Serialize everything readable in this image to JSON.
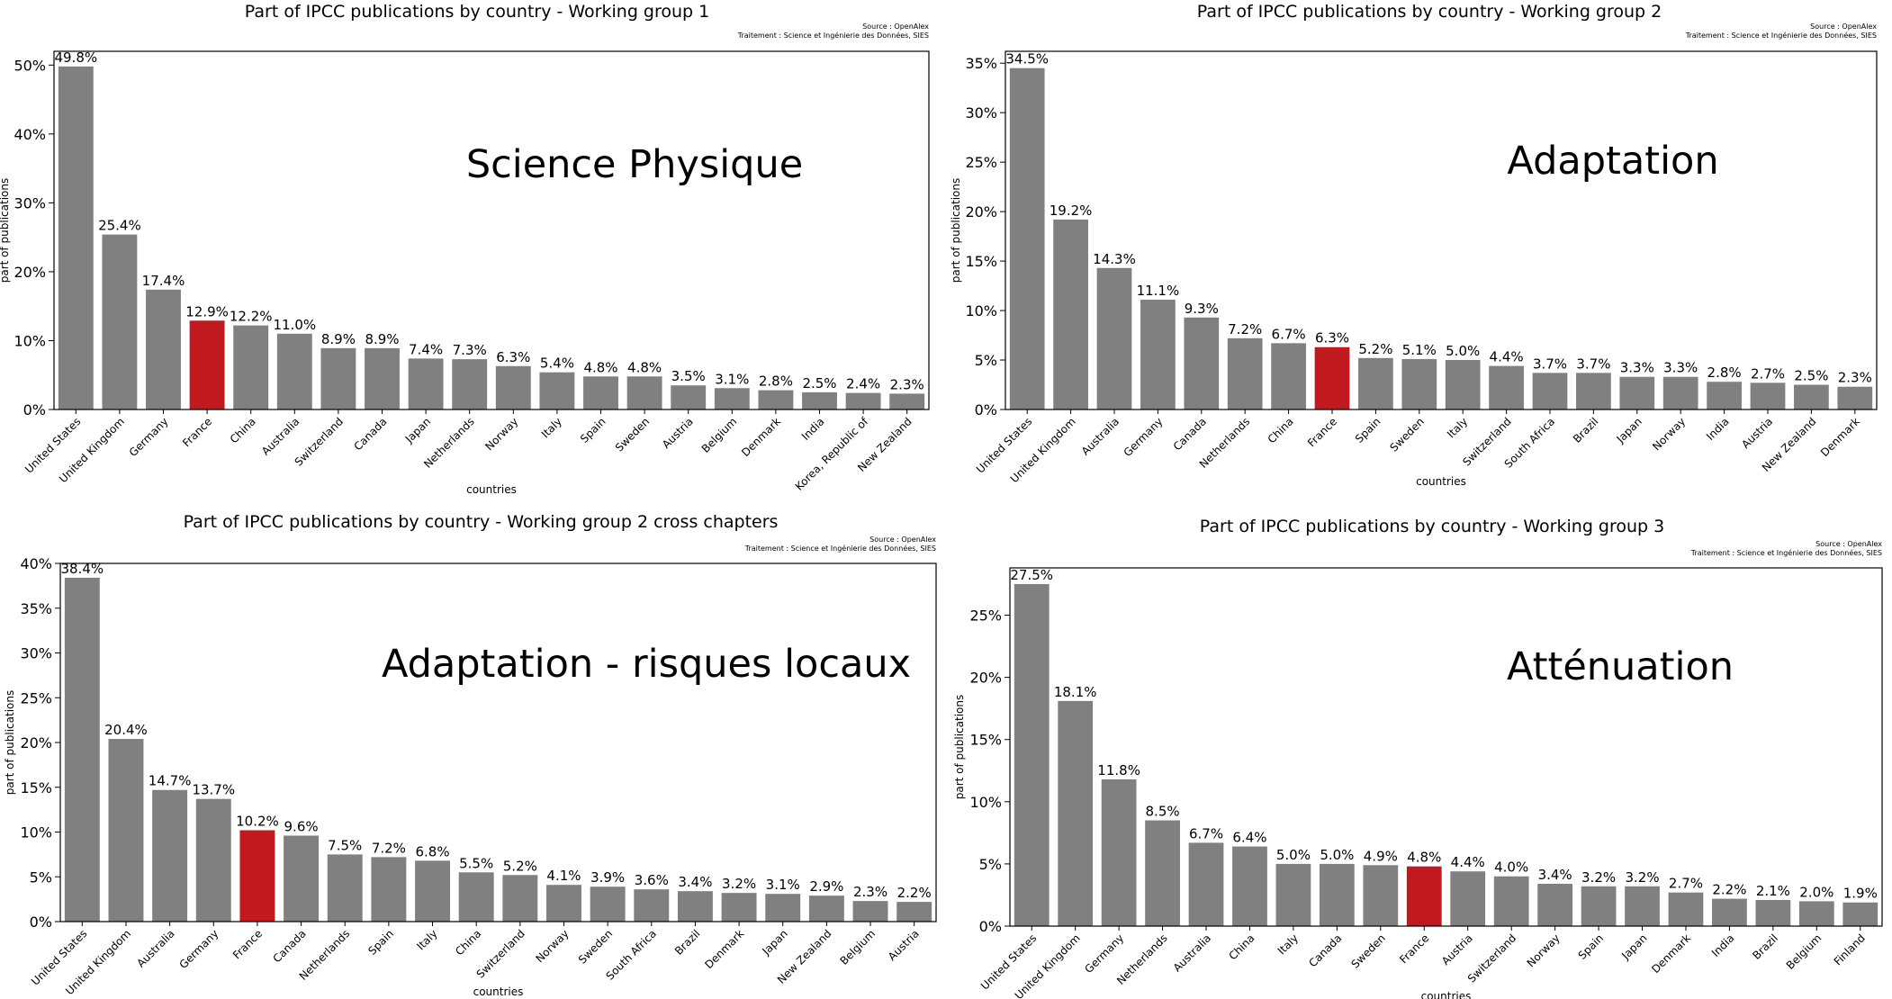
{
  "source_line": "Source : OpenAlex",
  "treatment_line": "Traitement : Science et Ingénierie des Données, SIES",
  "bar_color": "#808080",
  "highlight_color": "#c0191f",
  "highlight_category": "France",
  "chart_data": [
    {
      "type": "bar",
      "title": "Part of IPCC publications by country - Working group 1",
      "overlay": "Science Physique",
      "xlabel": "countries",
      "ylabel": "part of publications",
      "ylim": [
        0,
        52
      ],
      "yticks": [
        0,
        10,
        20,
        30,
        40,
        50
      ],
      "categories": [
        "United States",
        "United Kingdom",
        "Germany",
        "France",
        "China",
        "Australia",
        "Switzerland",
        "Canada",
        "Japan",
        "Netherlands",
        "Norway",
        "Italy",
        "Spain",
        "Sweden",
        "Austria",
        "Belgium",
        "Denmark",
        "India",
        "Korea, Republic of",
        "New Zealand"
      ],
      "values": [
        49.8,
        25.4,
        17.4,
        12.9,
        12.2,
        11.0,
        8.9,
        8.9,
        7.4,
        7.3,
        6.3,
        5.4,
        4.8,
        4.8,
        3.5,
        3.1,
        2.8,
        2.5,
        2.4,
        2.3
      ]
    },
    {
      "type": "bar",
      "title": "Part of IPCC publications by country - Working group 2",
      "overlay": "Adaptation",
      "xlabel": "countries",
      "ylabel": "part of publications",
      "ylim": [
        0,
        36.2
      ],
      "yticks": [
        0,
        5,
        10,
        15,
        20,
        25,
        30,
        35
      ],
      "categories": [
        "United States",
        "United Kingdom",
        "Australia",
        "Germany",
        "Canada",
        "Netherlands",
        "China",
        "France",
        "Spain",
        "Sweden",
        "Italy",
        "Switzerland",
        "South Africa",
        "Brazil",
        "Japan",
        "Norway",
        "India",
        "Austria",
        "New Zealand",
        "Denmark"
      ],
      "values": [
        34.5,
        19.2,
        14.3,
        11.1,
        9.3,
        7.2,
        6.7,
        6.3,
        5.2,
        5.1,
        5.0,
        4.4,
        3.7,
        3.7,
        3.3,
        3.3,
        2.8,
        2.7,
        2.5,
        2.3
      ]
    },
    {
      "type": "bar",
      "title": "Part of IPCC publications by country - Working group 2 cross chapters",
      "overlay": "Adaptation - risques locaux",
      "xlabel": "countries",
      "ylabel": "part of publications",
      "ylim": [
        0,
        40
      ],
      "yticks": [
        0,
        5,
        10,
        15,
        20,
        25,
        30,
        35,
        40
      ],
      "categories": [
        "United States",
        "United Kingdom",
        "Australia",
        "Germany",
        "France",
        "Canada",
        "Netherlands",
        "Spain",
        "Italy",
        "China",
        "Switzerland",
        "Norway",
        "Sweden",
        "South Africa",
        "Brazil",
        "Denmark",
        "Japan",
        "New Zealand",
        "Belgium",
        "Austria"
      ],
      "values": [
        38.4,
        20.4,
        14.7,
        13.7,
        10.2,
        9.6,
        7.5,
        7.2,
        6.8,
        5.5,
        5.2,
        4.1,
        3.9,
        3.6,
        3.4,
        3.2,
        3.1,
        2.9,
        2.3,
        2.2
      ]
    },
    {
      "type": "bar",
      "title": "Part of IPCC publications by country - Working group 3",
      "overlay": "Atténuation",
      "xlabel": "countries",
      "ylabel": "part of publications",
      "ylim": [
        0,
        28.8
      ],
      "yticks": [
        0,
        5,
        10,
        15,
        20,
        25
      ],
      "categories": [
        "United States",
        "United Kingdom",
        "Germany",
        "Netherlands",
        "Australia",
        "China",
        "Italy",
        "Canada",
        "Sweden",
        "France",
        "Austria",
        "Switzerland",
        "Norway",
        "Spain",
        "Japan",
        "Denmark",
        "India",
        "Brazil",
        "Belgium",
        "Finland"
      ],
      "values": [
        27.5,
        18.1,
        11.8,
        8.5,
        6.7,
        6.4,
        5.0,
        5.0,
        4.9,
        4.8,
        4.4,
        4.0,
        3.4,
        3.2,
        3.2,
        2.7,
        2.2,
        2.1,
        2.0,
        1.9
      ]
    }
  ]
}
